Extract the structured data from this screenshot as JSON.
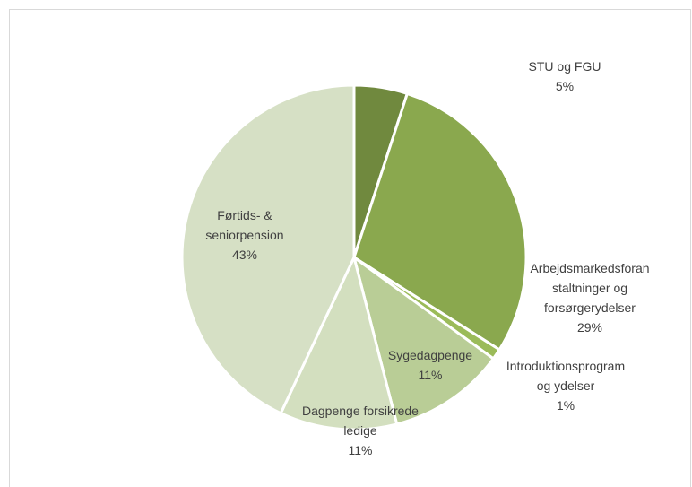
{
  "chart_data": {
    "type": "pie",
    "categories": [
      "STU og FGU",
      "Arbejdsmarkedsforanstaltninger og forsørgerydelser",
      "Introduktionsprogram og ydelser",
      "Sygedagpenge",
      "Dagpenge forsikrede ledige",
      "Førtids- & seniorpension"
    ],
    "values": [
      5,
      29,
      1,
      11,
      11,
      43
    ],
    "value_labels": [
      "5%",
      "29%",
      "1%",
      "11%",
      "11%",
      "43%"
    ],
    "colors": [
      "#70893e",
      "#8aa84e",
      "#9bbb59",
      "#b9cd96",
      "#d3dfbf",
      "#d6e0c5"
    ]
  }
}
